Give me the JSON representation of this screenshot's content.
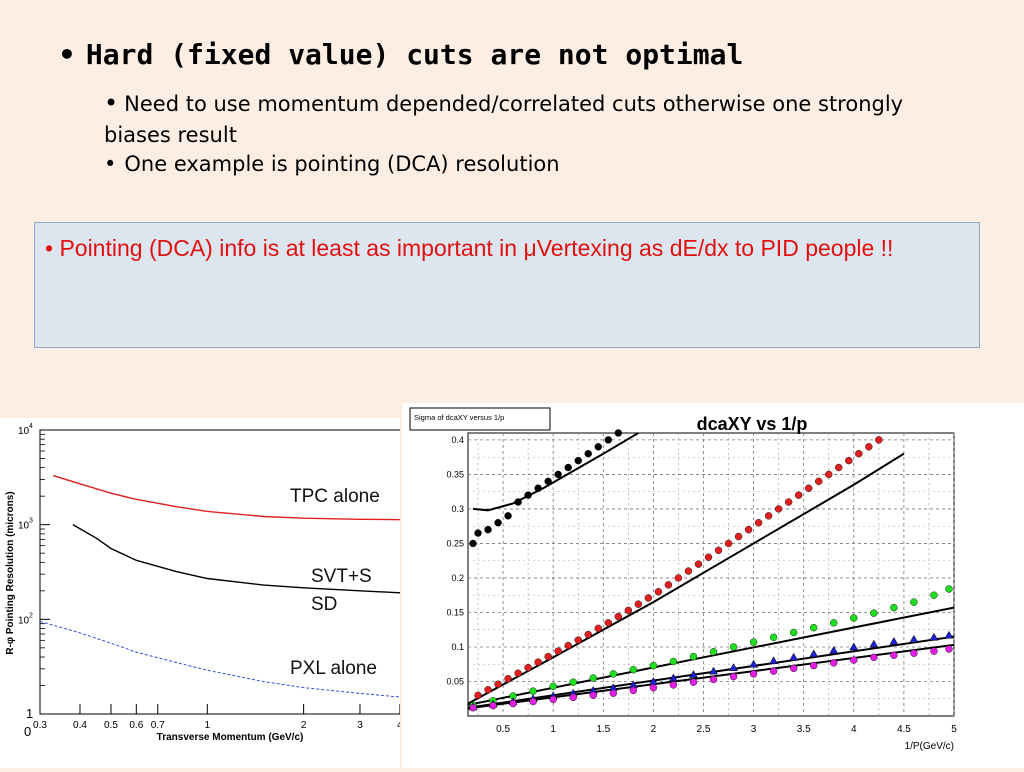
{
  "slide": {
    "bullet1": "Hard (fixed value) cuts are not optimal",
    "bullet2": "Need to use momentum depended/correlated cuts otherwise one strongly biases result",
    "bullet3": "One example is pointing (DCA) resolution",
    "bullet_glyph": "•",
    "note": "• Pointing (DCA) info is at least as important in μVertexing as dE/dx to PID people !!",
    "colors": {
      "background": "#fdeee4",
      "note_bg": "#dde5ef",
      "note_text": "#e01010"
    }
  },
  "chart_data": [
    {
      "type": "line",
      "title": "",
      "xlabel": "Transverse Momentum (GeV/c)",
      "ylabel": "R-φ Pointing Resolution (microns)",
      "xscale": "log",
      "yscale": "log",
      "xlim": [
        0.3,
        4.3
      ],
      "ylim": [
        10,
        10000
      ],
      "xticks": [
        "0.3",
        "0.4",
        "0.5",
        "0.6",
        "0.7",
        "1",
        "2",
        "3",
        "4"
      ],
      "xtick_values": [
        0.3,
        0.4,
        0.5,
        0.6,
        0.7,
        1,
        2,
        3,
        4
      ],
      "yticks": [
        "10",
        "10²",
        "10³",
        "10⁴"
      ],
      "ytick_values": [
        10,
        100,
        1000,
        10000
      ],
      "ytick_base": "10",
      "ytick_exp": [
        "",
        "2",
        "3",
        "4"
      ],
      "ytick_bottom_label": [
        "1",
        "0"
      ],
      "series": [
        {
          "name": "TPC alone",
          "color": "#e02020",
          "style": "solid",
          "x": [
            0.33,
            0.4,
            0.5,
            0.6,
            0.8,
            1.0,
            1.5,
            2.0,
            3.0,
            4.0
          ],
          "y": [
            3300,
            2700,
            2150,
            1850,
            1550,
            1380,
            1220,
            1170,
            1140,
            1130
          ]
        },
        {
          "name": "SVT+SSD",
          "label_lines": [
            "SVT+S",
            "SD"
          ],
          "color": "#000000",
          "style": "solid",
          "x": [
            0.38,
            0.45,
            0.5,
            0.6,
            0.8,
            1.0,
            1.5,
            2.0,
            3.0,
            4.1
          ],
          "y": [
            1000,
            720,
            560,
            420,
            320,
            270,
            230,
            215,
            200,
            190
          ]
        },
        {
          "name": "PXL alone",
          "color": "#3050e0",
          "style": "dashed",
          "x": [
            0.3,
            0.4,
            0.5,
            0.6,
            0.8,
            1.0,
            1.5,
            2.0,
            3.0,
            4.1
          ],
          "y": [
            95,
            72,
            56,
            45,
            35,
            29,
            22,
            19,
            16.5,
            15
          ]
        }
      ]
    },
    {
      "type": "scatter",
      "title": "dcaXY vs 1/p",
      "inset_title": "Sigma of dcaXY versus 1/p",
      "xlabel": "1/P(GeV/c)",
      "ylabel": "",
      "xlim": [
        0.15,
        5.0
      ],
      "ylim": [
        0.0,
        0.41
      ],
      "grid": true,
      "xticks": [
        "0.5",
        "1",
        "1.5",
        "2",
        "2.5",
        "3",
        "3.5",
        "4",
        "4.5",
        "5"
      ],
      "xtick_values": [
        0.5,
        1,
        1.5,
        2,
        2.5,
        3,
        3.5,
        4,
        4.5,
        5
      ],
      "yticks": [
        "0.05",
        "0.1",
        "0.15",
        "0.2",
        "0.25",
        "0.3",
        "0.35",
        "0.4"
      ],
      "ytick_values": [
        0.05,
        0.1,
        0.15,
        0.2,
        0.25,
        0.3,
        0.35,
        0.4
      ],
      "series": [
        {
          "color": "#000000",
          "marker": "circle",
          "x": [
            0.2,
            0.25,
            0.35,
            0.45,
            0.55,
            0.65,
            0.75,
            0.85,
            0.95,
            1.05,
            1.15,
            1.25,
            1.35,
            1.45,
            1.55,
            1.65
          ],
          "y": [
            0.25,
            0.265,
            0.27,
            0.28,
            0.29,
            0.31,
            0.32,
            0.33,
            0.34,
            0.35,
            0.36,
            0.37,
            0.38,
            0.39,
            0.4,
            0.41
          ],
          "fit": {
            "x": [
              0.2,
              0.35,
              0.6,
              0.9,
              1.2,
              1.5,
              1.85
            ],
            "y": [
              0.3,
              0.298,
              0.308,
              0.33,
              0.355,
              0.38,
              0.41
            ]
          }
        },
        {
          "color": "#e02020",
          "marker": "circle",
          "x": [
            0.25,
            0.35,
            0.45,
            0.55,
            0.65,
            0.75,
            0.85,
            0.95,
            1.05,
            1.15,
            1.25,
            1.35,
            1.45,
            1.55,
            1.65,
            1.75,
            1.85,
            1.95,
            2.05,
            2.15,
            2.25,
            2.35,
            2.45,
            2.55,
            2.65,
            2.75,
            2.85,
            2.95,
            3.05,
            3.15,
            3.25,
            3.35,
            3.45,
            3.55,
            3.65,
            3.75,
            3.85,
            3.95,
            4.05,
            4.15,
            4.25
          ],
          "y": [
            0.03,
            0.038,
            0.046,
            0.054,
            0.062,
            0.07,
            0.078,
            0.086,
            0.094,
            0.102,
            0.11,
            0.118,
            0.127,
            0.135,
            0.144,
            0.153,
            0.162,
            0.171,
            0.18,
            0.19,
            0.2,
            0.21,
            0.22,
            0.23,
            0.24,
            0.25,
            0.26,
            0.27,
            0.28,
            0.29,
            0.3,
            0.31,
            0.32,
            0.33,
            0.34,
            0.35,
            0.36,
            0.37,
            0.38,
            0.39,
            0.4
          ],
          "fit": {
            "x": [
              0.15,
              1.0,
              2.0,
              3.0,
              4.0,
              4.5
            ],
            "y": [
              0.018,
              0.085,
              0.165,
              0.25,
              0.335,
              0.38
            ]
          }
        },
        {
          "color": "#20dd20",
          "marker": "circle",
          "x": [
            0.2,
            0.4,
            0.6,
            0.8,
            1.0,
            1.2,
            1.4,
            1.6,
            1.8,
            2.0,
            2.2,
            2.4,
            2.6,
            2.8,
            3.0,
            3.2,
            3.4,
            3.6,
            3.8,
            4.0,
            4.2,
            4.4,
            4.6,
            4.8,
            4.95
          ],
          "y": [
            0.015,
            0.022,
            0.029,
            0.036,
            0.043,
            0.049,
            0.055,
            0.061,
            0.067,
            0.073,
            0.079,
            0.086,
            0.093,
            0.1,
            0.107,
            0.114,
            0.121,
            0.128,
            0.135,
            0.142,
            0.149,
            0.157,
            0.165,
            0.175,
            0.184
          ],
          "fit": {
            "x": [
              0.15,
              2.5,
              5.0
            ],
            "y": [
              0.016,
              0.085,
              0.157
            ]
          }
        },
        {
          "color": "#2020d0",
          "marker": "triangle",
          "x": [
            0.2,
            0.4,
            0.6,
            0.8,
            1.0,
            1.2,
            1.4,
            1.6,
            1.8,
            2.0,
            2.2,
            2.4,
            2.6,
            2.8,
            3.0,
            3.2,
            3.4,
            3.6,
            3.8,
            4.0,
            4.2,
            4.4,
            4.6,
            4.8,
            4.95
          ],
          "y": [
            0.013,
            0.017,
            0.021,
            0.025,
            0.029,
            0.033,
            0.037,
            0.041,
            0.045,
            0.05,
            0.055,
            0.06,
            0.065,
            0.07,
            0.075,
            0.08,
            0.085,
            0.09,
            0.095,
            0.1,
            0.104,
            0.108,
            0.111,
            0.114,
            0.117
          ],
          "fit": {
            "x": [
              0.15,
              5.0
            ],
            "y": [
              0.012,
              0.115
            ]
          }
        },
        {
          "color": "#e020e0",
          "marker": "circle",
          "x": [
            0.2,
            0.4,
            0.6,
            0.8,
            1.0,
            1.2,
            1.4,
            1.6,
            1.8,
            2.0,
            2.2,
            2.4,
            2.6,
            2.8,
            3.0,
            3.2,
            3.4,
            3.6,
            3.8,
            4.0,
            4.2,
            4.4,
            4.6,
            4.8,
            4.95
          ],
          "y": [
            0.012,
            0.015,
            0.018,
            0.021,
            0.024,
            0.027,
            0.03,
            0.033,
            0.037,
            0.041,
            0.045,
            0.049,
            0.053,
            0.057,
            0.061,
            0.065,
            0.069,
            0.073,
            0.077,
            0.081,
            0.085,
            0.088,
            0.091,
            0.094,
            0.097
          ],
          "fit": {
            "x": [
              0.15,
              5.0
            ],
            "y": [
              0.011,
              0.103
            ]
          }
        }
      ]
    }
  ]
}
